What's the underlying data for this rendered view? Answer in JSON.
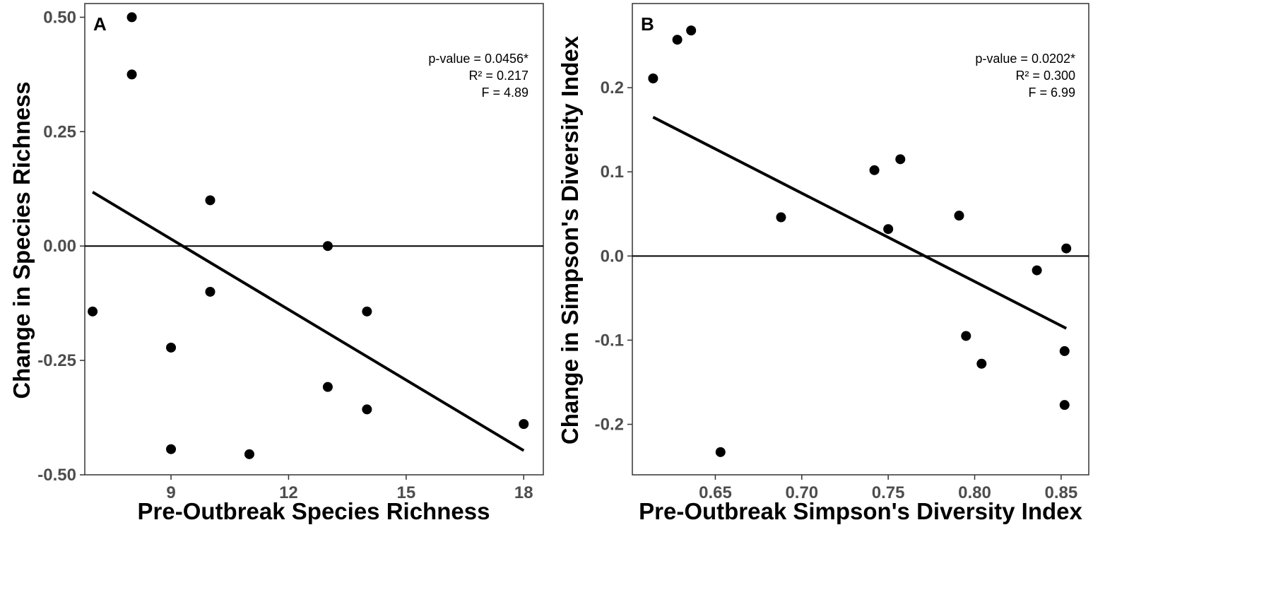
{
  "chart_data": [
    {
      "panel": "A",
      "type": "scatter",
      "title": "",
      "xlabel": "Pre-Outbreak Species Richness",
      "ylabel": "Change in Species Richness",
      "xlim": [
        6.8,
        18.5
      ],
      "ylim": [
        -0.5,
        0.53
      ],
      "xticks": [
        9,
        12,
        15,
        18
      ],
      "xtick_labels": [
        "9",
        "12",
        "15",
        "18"
      ],
      "yticks": [
        -0.5,
        -0.25,
        0,
        0.25,
        0.5
      ],
      "ytick_labels": [
        "-0.50",
        "-0.25",
        "0.00",
        "0.25",
        "0.50"
      ],
      "grid": false,
      "points": [
        {
          "x": 7,
          "y": -0.143
        },
        {
          "x": 8,
          "y": 0.5
        },
        {
          "x": 8,
          "y": 0.375
        },
        {
          "x": 9,
          "y": -0.222
        },
        {
          "x": 9,
          "y": -0.444
        },
        {
          "x": 10,
          "y": 0.1
        },
        {
          "x": 10,
          "y": -0.1
        },
        {
          "x": 11,
          "y": -0.455
        },
        {
          "x": 13,
          "y": 0.0
        },
        {
          "x": 13,
          "y": -0.308
        },
        {
          "x": 14,
          "y": -0.143
        },
        {
          "x": 14,
          "y": -0.357
        },
        {
          "x": 18,
          "y": -0.389
        }
      ],
      "regression_line": {
        "x": [
          7,
          18
        ],
        "y": [
          0.118,
          -0.447
        ]
      },
      "reference_line_y": 0,
      "annotations": [
        "p-value = 0.0456*",
        "R² = 0.217",
        "F = 4.89"
      ]
    },
    {
      "panel": "B",
      "type": "scatter",
      "title": "",
      "xlabel": "Pre-Outbreak Simpson's Diversity Index",
      "ylabel": "Change in Simpson's Diversity Index",
      "xlim": [
        0.602,
        0.866
      ],
      "ylim": [
        -0.26,
        0.3
      ],
      "xticks": [
        0.65,
        0.7,
        0.75,
        0.8,
        0.85
      ],
      "xtick_labels": [
        "0.65",
        "0.70",
        "0.75",
        "0.80",
        "0.85"
      ],
      "yticks": [
        -0.2,
        -0.1,
        0.0,
        0.1,
        0.2
      ],
      "ytick_labels": [
        "-0.2",
        "-0.1",
        "0.0",
        "0.1",
        "0.2"
      ],
      "grid": false,
      "points": [
        {
          "x": 0.614,
          "y": 0.211
        },
        {
          "x": 0.628,
          "y": 0.257
        },
        {
          "x": 0.636,
          "y": 0.268
        },
        {
          "x": 0.653,
          "y": -0.233
        },
        {
          "x": 0.688,
          "y": 0.046
        },
        {
          "x": 0.742,
          "y": 0.102
        },
        {
          "x": 0.75,
          "y": 0.032
        },
        {
          "x": 0.757,
          "y": 0.115
        },
        {
          "x": 0.791,
          "y": 0.048
        },
        {
          "x": 0.795,
          "y": -0.095
        },
        {
          "x": 0.804,
          "y": -0.128
        },
        {
          "x": 0.836,
          "y": -0.017
        },
        {
          "x": 0.852,
          "y": -0.113
        },
        {
          "x": 0.852,
          "y": -0.177
        },
        {
          "x": 0.853,
          "y": 0.009
        }
      ],
      "regression_line": {
        "x": [
          0.614,
          0.853
        ],
        "y": [
          0.165,
          -0.086
        ]
      },
      "reference_line_y": 0,
      "annotations": [
        "p-value = 0.0202*",
        "R² = 0.300",
        "F = 6.99"
      ]
    }
  ]
}
